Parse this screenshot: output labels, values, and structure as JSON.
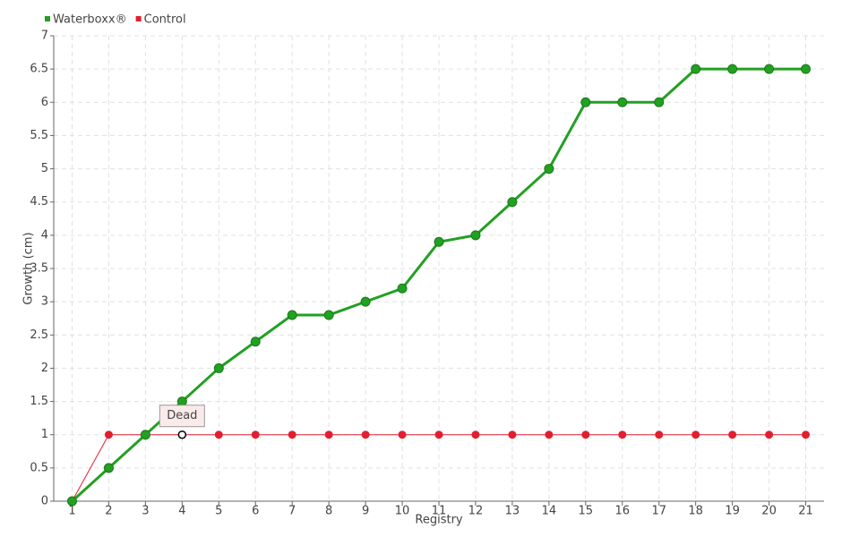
{
  "chart_data": {
    "type": "line",
    "x_label": "Registry",
    "y_label": "Growth (cm)",
    "categories": [
      "1",
      "2",
      "3",
      "4",
      "5",
      "6",
      "7",
      "8",
      "9",
      "10",
      "11",
      "12",
      "13",
      "14",
      "15",
      "16",
      "17",
      "18",
      "19",
      "20",
      "21"
    ],
    "series": [
      {
        "name": "Waterboxx®",
        "color": "#22a022",
        "values": [
          0,
          0.5,
          1,
          1.5,
          2,
          2.4,
          2.8,
          2.8,
          3,
          3.2,
          3.9,
          4,
          4.5,
          5,
          6,
          6,
          6,
          6.5,
          6.5,
          6.5,
          6.5
        ]
      },
      {
        "name": "Control",
        "color": "#e02030",
        "values": [
          0,
          1,
          1,
          1,
          1,
          1,
          1,
          1,
          1,
          1,
          1,
          1,
          1,
          1,
          1,
          1,
          1,
          1,
          1,
          1,
          1
        ]
      }
    ],
    "annotation": "Dead",
    "ylim": [
      0,
      7
    ],
    "yticks": [
      0,
      0.5,
      1,
      1.5,
      2,
      2.5,
      3,
      3.5,
      4,
      4.5,
      5,
      5.5,
      6,
      6.5,
      7
    ],
    "grid": true,
    "legend": "top-left"
  }
}
